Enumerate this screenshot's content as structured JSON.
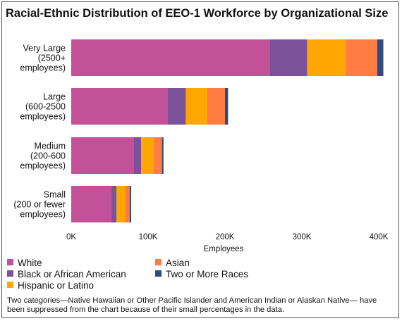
{
  "chart_data": {
    "type": "bar",
    "orientation": "horizontal",
    "stacked": true,
    "title": "Racial-Ethnic Distribution of EEO-1 Workforce by Organizational Size",
    "xlabel": "Employees",
    "ylabel": "",
    "xlim": [
      0,
      400000
    ],
    "x_ticks": [
      0,
      100000,
      200000,
      300000,
      400000
    ],
    "x_tick_labels": [
      "0K",
      "100K",
      "200K",
      "300K",
      "400K"
    ],
    "grid": false,
    "legend_position": "bottom",
    "categories": [
      [
        "Very Large",
        "(2500+",
        "employees)"
      ],
      [
        "Large",
        "(600-2500",
        "employees)"
      ],
      [
        "Medium",
        "(200-600",
        "employees)"
      ],
      [
        "Small",
        "(200 or fewer",
        "employees)"
      ]
    ],
    "series": [
      {
        "name": "White",
        "color": "#c2519a",
        "values": [
          258000,
          125000,
          81000,
          52000
        ]
      },
      {
        "name": "Black or African American",
        "color": "#7b5199",
        "values": [
          49000,
          24000,
          10000,
          7000
        ]
      },
      {
        "name": "Hispanic or Latino",
        "color": "#ffa600",
        "values": [
          50000,
          28000,
          16000,
          11000
        ]
      },
      {
        "name": "Asian",
        "color": "#ff7c43",
        "values": [
          41000,
          23000,
          11000,
          6000
        ]
      },
      {
        "name": "Two or More Races",
        "color": "#2f4b7c",
        "values": [
          8000,
          4000,
          2000,
          2000
        ]
      }
    ],
    "legend_order": [
      "White",
      "Asian",
      "Black or African American",
      "Two or More Races",
      "Hispanic or Latino"
    ],
    "note": "Two categories—Native Hawaiian or Other Pacific Islander and American Indian or Alaskan Native— have been suppressed from the chart because of their small percentages in the data."
  }
}
